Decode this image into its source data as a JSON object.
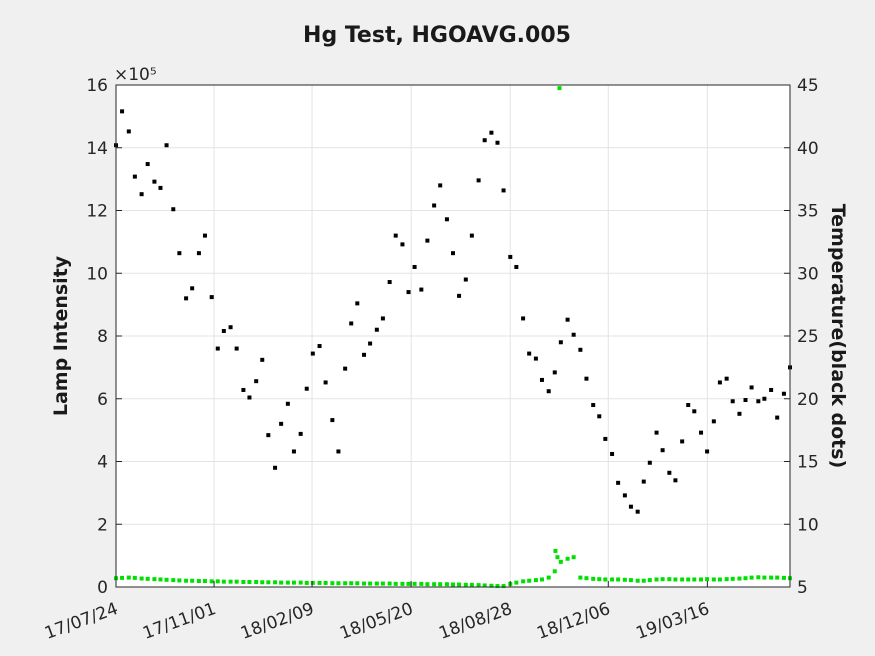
{
  "chart_data": {
    "type": "scatter",
    "title": "Hg Test, HGOAVG.005",
    "ylabel": "Lamp Intensity",
    "y2label": "Temperature(black dots)",
    "y_exponent": "×10⁵",
    "xlim": [
      0,
      100
    ],
    "ylim": [
      0,
      16
    ],
    "y2lim": [
      5,
      45
    ],
    "grid": true,
    "x_ticks": [
      {
        "label": "17/07/24",
        "pos": 0
      },
      {
        "label": "17/11/01",
        "pos": 14.55
      },
      {
        "label": "18/02/09",
        "pos": 29.09
      },
      {
        "label": "18/05/20",
        "pos": 43.79
      },
      {
        "label": "18/08/28",
        "pos": 58.49
      },
      {
        "label": "18/12/06",
        "pos": 73.04
      },
      {
        "label": "19/03/16",
        "pos": 87.74
      }
    ],
    "y_ticks": [
      0,
      2,
      4,
      6,
      8,
      10,
      12,
      14,
      16
    ],
    "y2_ticks": [
      5,
      10,
      15,
      20,
      25,
      30,
      35,
      40,
      45
    ],
    "series": [
      {
        "axis": "right",
        "color": "#000000",
        "x": [
          0.0,
          0.9,
          1.9,
          2.8,
          3.8,
          4.7,
          5.7,
          6.6,
          7.5,
          8.5,
          9.4,
          10.4,
          11.3,
          12.3,
          13.2,
          14.2,
          15.1,
          16.0,
          17.0,
          17.9,
          18.9,
          19.8,
          20.8,
          21.7,
          22.6,
          23.6,
          24.5,
          25.5,
          26.4,
          27.4,
          28.3,
          29.2,
          30.2,
          31.1,
          32.1,
          33.0,
          34.0,
          34.9,
          35.8,
          36.8,
          37.7,
          38.7,
          39.6,
          40.6,
          41.5,
          42.5,
          43.4,
          44.3,
          45.3,
          46.2,
          47.2,
          48.1,
          49.1,
          50.0,
          50.9,
          51.9,
          52.8,
          53.8,
          54.7,
          55.7,
          56.6,
          57.5,
          58.5,
          59.4,
          60.4,
          61.3,
          62.3,
          63.2,
          64.2,
          65.1,
          66.0,
          67.0,
          67.9,
          68.9,
          69.8,
          70.8,
          71.7,
          72.6,
          73.6,
          74.5,
          75.5,
          76.4,
          77.4,
          78.3,
          79.2,
          80.2,
          81.1,
          82.1,
          83.0,
          84.0,
          84.9,
          85.8,
          86.8,
          87.7,
          88.7,
          89.6,
          90.6,
          91.5,
          92.5,
          93.4,
          94.3,
          95.3,
          96.2,
          97.2,
          98.1,
          99.1,
          100.0
        ],
        "y": [
          40.2,
          42.9,
          41.3,
          37.7,
          36.3,
          38.7,
          37.3,
          36.8,
          40.2,
          35.1,
          31.6,
          28.0,
          28.8,
          31.6,
          33.0,
          28.1,
          24.0,
          25.4,
          25.7,
          24.0,
          20.7,
          20.1,
          21.4,
          23.1,
          17.1,
          14.5,
          18.0,
          19.6,
          15.8,
          17.2,
          20.8,
          23.6,
          24.2,
          21.3,
          18.3,
          15.8,
          22.4,
          26.0,
          27.6,
          23.5,
          24.4,
          25.5,
          26.4,
          29.3,
          33.0,
          32.3,
          28.5,
          30.5,
          28.7,
          32.6,
          35.4,
          37.0,
          34.3,
          31.6,
          28.2,
          29.5,
          33.0,
          37.4,
          40.6,
          41.2,
          40.4,
          36.6,
          31.3,
          30.5,
          26.4,
          23.6,
          23.2,
          21.5,
          20.6,
          22.1,
          24.5,
          26.3,
          25.1,
          23.9,
          21.6,
          19.5,
          18.6,
          16.8,
          15.6,
          13.3,
          12.3,
          11.4,
          11.0,
          13.4,
          14.9,
          17.3,
          15.9,
          14.1,
          13.5,
          16.6,
          19.5,
          19.0,
          17.3,
          15.8,
          18.2,
          21.3,
          21.6,
          19.8,
          18.8,
          19.9,
          20.9,
          19.8,
          20.0,
          20.7,
          18.5,
          20.4,
          22.5
        ]
      },
      {
        "axis": "left",
        "color": "#00e000",
        "x": [
          0.0,
          0.9,
          1.9,
          2.8,
          3.8,
          4.7,
          5.7,
          6.6,
          7.5,
          8.5,
          9.4,
          10.4,
          11.3,
          12.3,
          13.2,
          14.2,
          15.1,
          16.0,
          17.0,
          17.9,
          18.9,
          19.8,
          20.8,
          21.7,
          22.6,
          23.6,
          24.5,
          25.5,
          26.4,
          27.4,
          28.3,
          29.2,
          30.2,
          31.1,
          32.1,
          33.0,
          34.0,
          34.9,
          35.8,
          36.8,
          37.7,
          38.7,
          39.6,
          40.6,
          41.5,
          42.5,
          43.4,
          44.3,
          45.3,
          46.2,
          47.2,
          48.1,
          49.1,
          50.0,
          50.9,
          51.9,
          52.8,
          53.8,
          54.7,
          55.7,
          56.6,
          57.5,
          58.5,
          59.4,
          60.4,
          61.3,
          62.3,
          63.2,
          64.2,
          65.1,
          66.0,
          67.0,
          67.9,
          68.9,
          69.8,
          70.8,
          71.7,
          72.6,
          73.6,
          74.5,
          75.5,
          76.4,
          77.4,
          78.3,
          79.2,
          80.2,
          81.1,
          82.1,
          83.0,
          84.0,
          84.9,
          85.8,
          86.8,
          87.7,
          88.7,
          89.6,
          90.6,
          91.5,
          92.5,
          93.4,
          94.3,
          95.3,
          96.2,
          97.2,
          98.1,
          99.1,
          100.0
        ],
        "y": [
          0.28,
          0.29,
          0.3,
          0.29,
          0.27,
          0.26,
          0.25,
          0.24,
          0.23,
          0.22,
          0.21,
          0.2,
          0.2,
          0.19,
          0.19,
          0.18,
          0.18,
          0.17,
          0.17,
          0.17,
          0.16,
          0.16,
          0.16,
          0.15,
          0.15,
          0.15,
          0.14,
          0.14,
          0.14,
          0.14,
          0.13,
          0.13,
          0.13,
          0.13,
          0.12,
          0.12,
          0.12,
          0.12,
          0.12,
          0.11,
          0.11,
          0.11,
          0.11,
          0.11,
          0.1,
          0.1,
          0.1,
          0.1,
          0.1,
          0.09,
          0.09,
          0.09,
          0.09,
          0.08,
          0.08,
          0.07,
          0.07,
          0.06,
          0.05,
          0.04,
          0.03,
          0.03,
          0.1,
          0.14,
          0.18,
          0.2,
          0.22,
          0.24,
          0.3,
          0.5,
          0.8,
          0.9,
          0.95,
          0.3,
          0.28,
          0.26,
          0.25,
          0.24,
          0.24,
          0.24,
          0.23,
          0.22,
          0.2,
          0.2,
          0.22,
          0.24,
          0.25,
          0.25,
          0.24,
          0.24,
          0.24,
          0.24,
          0.24,
          0.25,
          0.24,
          0.24,
          0.25,
          0.26,
          0.27,
          0.28,
          0.3,
          0.31,
          0.3,
          0.3,
          0.3,
          0.29,
          0.28
        ],
        "outliers": [
          {
            "x": 65.8,
            "y": 15.9
          },
          {
            "x": 65.2,
            "y": 1.15
          },
          {
            "x": 65.5,
            "y": 0.95
          }
        ]
      }
    ]
  }
}
